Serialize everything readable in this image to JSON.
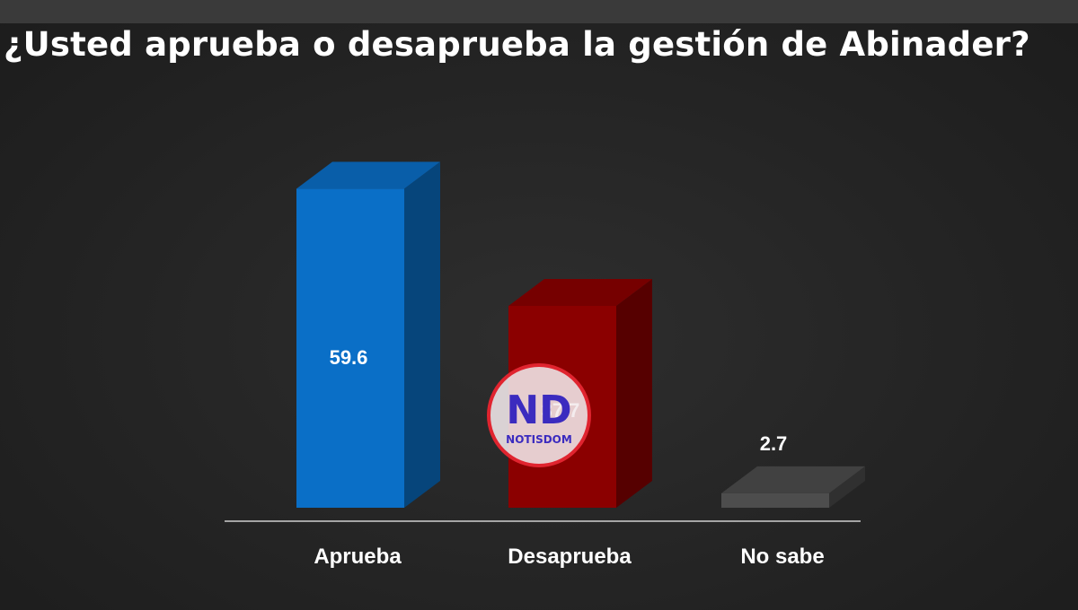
{
  "chart_data": {
    "type": "bar",
    "title": "¿Usted aprueba o desaprueba la gestión de Abinader?",
    "xlabel": "",
    "ylabel": "",
    "categories": [
      "Aprueba",
      "Desaprueba",
      "No sabe"
    ],
    "values": [
      59.6,
      37.7,
      2.7
    ],
    "value_labels": [
      "59.6",
      "37.7",
      "2.7"
    ],
    "colors": [
      "#0a6fc7",
      "#8b0000",
      "#4d4d4d"
    ],
    "ylim": [
      0,
      60
    ],
    "grid": false,
    "legend": "none",
    "style": "3d-bars"
  },
  "watermark": {
    "logo_text": "ND",
    "brand_text": "NOTISDOM",
    "colors": {
      "ring": "#e0242f",
      "fill": "#f3e9ec",
      "text": "#3b2bbf"
    }
  }
}
